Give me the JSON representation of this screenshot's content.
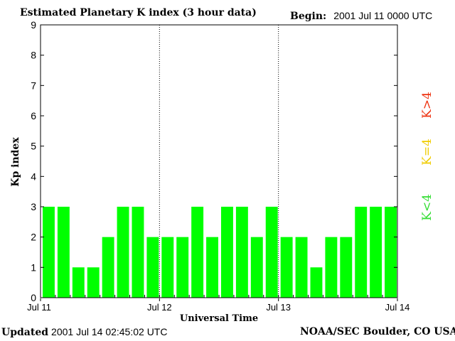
{
  "header": {
    "title": "Estimated Planetary K index (3 hour data)",
    "begin_label": "Begin:",
    "begin_value": "2001 Jul 11 0000 UTC"
  },
  "footer": {
    "updated_label": "Updated",
    "updated_value": "2001 Jul 14 02:45:02 UTC",
    "source": "NOAA/SEC Boulder, CO USA"
  },
  "chart_data": {
    "type": "bar",
    "title": "Estimated Planetary K index (3 hour data)",
    "xlabel": "Universal Time",
    "ylabel": "Kp index",
    "ylim": [
      0,
      9
    ],
    "yticks": [
      0,
      1,
      2,
      3,
      4,
      5,
      6,
      7,
      8,
      9
    ],
    "xlim": [
      0,
      72
    ],
    "xticks": [
      {
        "hour": 0,
        "label": "Jul 11"
      },
      {
        "hour": 24,
        "label": "Jul 12"
      },
      {
        "hour": 48,
        "label": "Jul 13"
      },
      {
        "hour": 72,
        "label": "Jul 14"
      }
    ],
    "day_dividers_hours": [
      24,
      48
    ],
    "interval_hours": 3,
    "values": [
      3,
      3,
      1,
      1,
      2,
      3,
      3,
      2,
      2,
      2,
      3,
      2,
      3,
      3,
      2,
      3,
      2,
      2,
      1,
      2,
      2,
      3,
      3,
      3
    ],
    "bar_color": "#00ff00",
    "legend": [
      {
        "label": "K<4",
        "color": "#33dd33"
      },
      {
        "label": "K=4",
        "color": "#f0cc00"
      },
      {
        "label": "K>4",
        "color": "#ee3311"
      }
    ]
  }
}
